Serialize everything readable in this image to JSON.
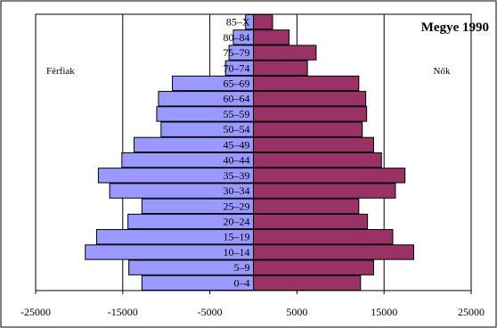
{
  "chart_data": {
    "type": "bar",
    "orientation": "horizontal",
    "title": "Megye 1990",
    "left_label": "Férfiak",
    "right_label": "Nők",
    "categories": [
      "0–4",
      "5–9",
      "10–14",
      "15–19",
      "20–24",
      "25–29",
      "30–34",
      "35–39",
      "40–44",
      "45–49",
      "50–54",
      "55–59",
      "60–64",
      "65–69",
      "70–74",
      "75–79",
      "80–84",
      "85–X"
    ],
    "series": [
      {
        "name": "Férfiak",
        "color": "#9999ff",
        "values": [
          -12800,
          -14300,
          -19300,
          -18000,
          -14400,
          -12800,
          -16500,
          -17800,
          -15100,
          -13700,
          -10600,
          -11100,
          -10900,
          -9300,
          -3200,
          -2800,
          -2300,
          -900
        ]
      },
      {
        "name": "Nők",
        "color": "#993366",
        "values": [
          12300,
          13800,
          18400,
          16000,
          13100,
          12100,
          16300,
          17400,
          14700,
          13800,
          12500,
          13000,
          12900,
          12100,
          6200,
          7200,
          4100,
          2200
        ]
      }
    ],
    "xticks": [
      -25000,
      -15000,
      -5000,
      5000,
      15000,
      25000
    ],
    "xlim": [
      -25000,
      25000
    ],
    "grid": "vertical"
  }
}
